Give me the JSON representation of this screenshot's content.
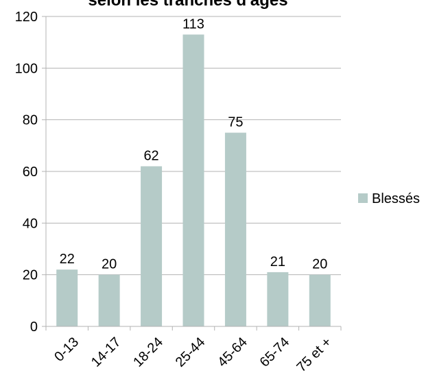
{
  "chart_data": {
    "type": "bar",
    "title": "selon les tranches d'âges",
    "categories": [
      "0-13",
      "14-17",
      "18-24",
      "25-44",
      "45-64",
      "65-74",
      "75 et +"
    ],
    "series": [
      {
        "name": "Blessés",
        "values": [
          22,
          20,
          62,
          113,
          75,
          21,
          20
        ],
        "color": "#b5cbc8"
      }
    ],
    "ylim": [
      0,
      120
    ],
    "yticks": [
      0,
      20,
      40,
      60,
      80,
      100,
      120
    ],
    "grid": true,
    "legend": "right",
    "data_labels": true
  }
}
